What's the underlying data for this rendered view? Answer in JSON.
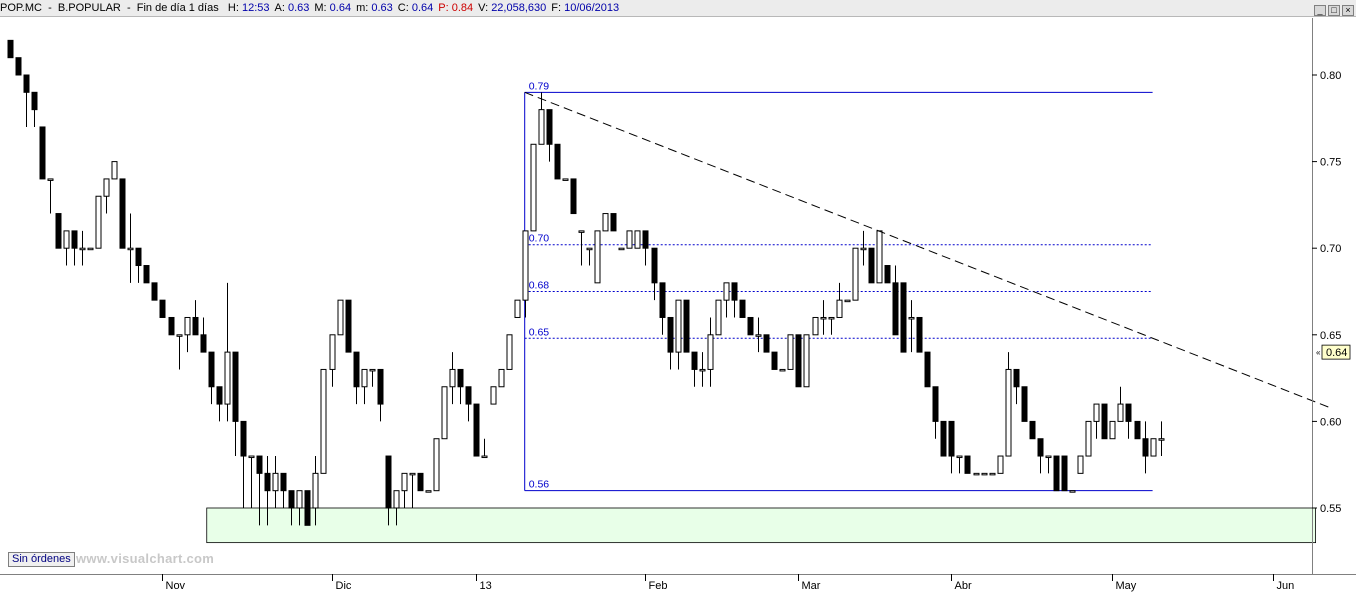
{
  "header": {
    "ticker": "POP.MC",
    "name": "B.POPULAR",
    "period": "Fin de día 1 días",
    "fields": [
      {
        "label": "H:",
        "value": "12:53"
      },
      {
        "label": "A:",
        "value": "0.63"
      },
      {
        "label": "M:",
        "value": "0.64"
      },
      {
        "label": "m:",
        "value": "0.63"
      },
      {
        "label": "C:",
        "value": "0.64"
      },
      {
        "label": "P:",
        "value": "0.84",
        "color": "#cc0000"
      },
      {
        "label": "V:",
        "value": "22,058,630"
      },
      {
        "label": "F:",
        "value": "10/06/2013"
      }
    ]
  },
  "window_buttons": {
    "minimize": "_",
    "maximize": "□",
    "close": "×"
  },
  "footer": {
    "orders_button": "Sin órdenes",
    "watermark": "www.visualchart.com"
  },
  "colors": {
    "up_body": "#ffffff",
    "down_body": "#000000",
    "fib_lines": "#0000cc",
    "support_zone": "#e8ffe8",
    "trendline": "#000000",
    "last_price_bg": "#ffffcc"
  },
  "chart_data": {
    "type": "candlestick",
    "ylim": [
      0.52,
      0.83
    ],
    "y_ticks": [
      {
        "value": 0.55,
        "label": "0.55"
      },
      {
        "value": 0.6,
        "label": "0.60"
      },
      {
        "value": 0.65,
        "label": "0.65"
      },
      {
        "value": 0.7,
        "label": "0.70"
      },
      {
        "value": 0.75,
        "label": "0.75"
      },
      {
        "value": 0.8,
        "label": "0.80"
      }
    ],
    "x_labels": [
      {
        "bar": 19,
        "label": "Nov"
      },
      {
        "bar": 40,
        "label": "Dic"
      },
      {
        "bar": 58,
        "label": "13"
      },
      {
        "bar": 79,
        "label": "Feb"
      },
      {
        "bar": 98,
        "label": "Mar"
      },
      {
        "bar": 117,
        "label": "Abr"
      },
      {
        "bar": 137,
        "label": "May"
      },
      {
        "bar": 157,
        "label": "Jun"
      }
    ],
    "last_price": "0.64",
    "fibonacci": {
      "start_bar": 64,
      "end_bar": 142,
      "levels": [
        {
          "value": 0.79,
          "label": "0.79",
          "style": "solid"
        },
        {
          "value": 0.702,
          "label": "0.70",
          "style": "dotted"
        },
        {
          "value": 0.675,
          "label": "0.68",
          "style": "dotted"
        },
        {
          "value": 0.648,
          "label": "0.65",
          "style": "dotted"
        },
        {
          "value": 0.56,
          "label": "0.56",
          "style": "solid"
        }
      ]
    },
    "trendline": {
      "bar1": 64,
      "price1": 0.79,
      "bar2": 164,
      "price2": 0.608
    },
    "support_zone": {
      "bar_start": 25,
      "bar_end": 162,
      "top": 0.55,
      "bottom": 0.53
    },
    "candles": [
      [
        0.82,
        0.82,
        0.81,
        0.81
      ],
      [
        0.81,
        0.81,
        0.8,
        0.8
      ],
      [
        0.8,
        0.8,
        0.77,
        0.79
      ],
      [
        0.79,
        0.79,
        0.77,
        0.78
      ],
      [
        0.77,
        0.77,
        0.74,
        0.74
      ],
      [
        0.74,
        0.74,
        0.72,
        0.74
      ],
      [
        0.72,
        0.72,
        0.7,
        0.7
      ],
      [
        0.7,
        0.71,
        0.69,
        0.71
      ],
      [
        0.71,
        0.71,
        0.69,
        0.7
      ],
      [
        0.7,
        0.71,
        0.69,
        0.7
      ],
      [
        0.7,
        0.7,
        0.7,
        0.7
      ],
      [
        0.7,
        0.73,
        0.7,
        0.73
      ],
      [
        0.73,
        0.74,
        0.72,
        0.74
      ],
      [
        0.74,
        0.75,
        0.74,
        0.75
      ],
      [
        0.74,
        0.74,
        0.7,
        0.7
      ],
      [
        0.7,
        0.72,
        0.68,
        0.7
      ],
      [
        0.7,
        0.7,
        0.68,
        0.69
      ],
      [
        0.69,
        0.69,
        0.68,
        0.68
      ],
      [
        0.68,
        0.68,
        0.67,
        0.67
      ],
      [
        0.67,
        0.67,
        0.66,
        0.66
      ],
      [
        0.66,
        0.66,
        0.65,
        0.65
      ],
      [
        0.65,
        0.65,
        0.63,
        0.65
      ],
      [
        0.65,
        0.66,
        0.64,
        0.66
      ],
      [
        0.66,
        0.67,
        0.65,
        0.65
      ],
      [
        0.65,
        0.66,
        0.64,
        0.64
      ],
      [
        0.64,
        0.64,
        0.61,
        0.62
      ],
      [
        0.62,
        0.62,
        0.6,
        0.61
      ],
      [
        0.61,
        0.68,
        0.6,
        0.64
      ],
      [
        0.64,
        0.64,
        0.58,
        0.6
      ],
      [
        0.6,
        0.6,
        0.55,
        0.58
      ],
      [
        0.58,
        0.58,
        0.55,
        0.58
      ],
      [
        0.58,
        0.58,
        0.54,
        0.57
      ],
      [
        0.57,
        0.58,
        0.54,
        0.56
      ],
      [
        0.56,
        0.58,
        0.55,
        0.57
      ],
      [
        0.57,
        0.57,
        0.55,
        0.56
      ],
      [
        0.56,
        0.56,
        0.54,
        0.55
      ],
      [
        0.55,
        0.56,
        0.54,
        0.56
      ],
      [
        0.56,
        0.56,
        0.54,
        0.54
      ],
      [
        0.55,
        0.58,
        0.54,
        0.57
      ],
      [
        0.57,
        0.63,
        0.57,
        0.63
      ],
      [
        0.63,
        0.65,
        0.62,
        0.65
      ],
      [
        0.65,
        0.67,
        0.65,
        0.67
      ],
      [
        0.67,
        0.67,
        0.64,
        0.64
      ],
      [
        0.64,
        0.64,
        0.61,
        0.62
      ],
      [
        0.62,
        0.63,
        0.61,
        0.63
      ],
      [
        0.63,
        0.63,
        0.62,
        0.63
      ],
      [
        0.63,
        0.63,
        0.6,
        0.61
      ],
      [
        0.58,
        0.58,
        0.54,
        0.55
      ],
      [
        0.55,
        0.56,
        0.54,
        0.56
      ],
      [
        0.56,
        0.57,
        0.55,
        0.57
      ],
      [
        0.57,
        0.57,
        0.55,
        0.57
      ],
      [
        0.57,
        0.57,
        0.56,
        0.56
      ],
      [
        0.56,
        0.56,
        0.56,
        0.56
      ],
      [
        0.56,
        0.59,
        0.56,
        0.59
      ],
      [
        0.59,
        0.62,
        0.59,
        0.62
      ],
      [
        0.62,
        0.64,
        0.61,
        0.63
      ],
      [
        0.63,
        0.63,
        0.61,
        0.62
      ],
      [
        0.62,
        0.62,
        0.6,
        0.61
      ],
      [
        0.61,
        0.61,
        0.58,
        0.58
      ],
      [
        0.58,
        0.59,
        0.58,
        0.58
      ],
      [
        0.61,
        0.62,
        0.61,
        0.62
      ],
      [
        0.62,
        0.63,
        0.62,
        0.63
      ],
      [
        0.63,
        0.65,
        0.63,
        0.65
      ],
      [
        0.66,
        0.67,
        0.66,
        0.67
      ],
      [
        0.67,
        0.71,
        0.66,
        0.71
      ],
      [
        0.71,
        0.76,
        0.71,
        0.76
      ],
      [
        0.76,
        0.79,
        0.76,
        0.78
      ],
      [
        0.78,
        0.78,
        0.75,
        0.76
      ],
      [
        0.76,
        0.76,
        0.74,
        0.74
      ],
      [
        0.74,
        0.74,
        0.74,
        0.74
      ],
      [
        0.74,
        0.74,
        0.72,
        0.72
      ],
      [
        0.71,
        0.71,
        0.69,
        0.71
      ],
      [
        0.7,
        0.7,
        0.69,
        0.7
      ],
      [
        0.68,
        0.71,
        0.68,
        0.71
      ],
      [
        0.71,
        0.72,
        0.71,
        0.72
      ],
      [
        0.72,
        0.72,
        0.71,
        0.71
      ],
      [
        0.7,
        0.7,
        0.7,
        0.7
      ],
      [
        0.7,
        0.71,
        0.7,
        0.71
      ],
      [
        0.7,
        0.71,
        0.7,
        0.71
      ],
      [
        0.71,
        0.71,
        0.69,
        0.7
      ],
      [
        0.7,
        0.7,
        0.67,
        0.68
      ],
      [
        0.68,
        0.68,
        0.65,
        0.66
      ],
      [
        0.66,
        0.66,
        0.63,
        0.64
      ],
      [
        0.64,
        0.67,
        0.63,
        0.67
      ],
      [
        0.67,
        0.67,
        0.64,
        0.64
      ],
      [
        0.64,
        0.64,
        0.62,
        0.63
      ],
      [
        0.63,
        0.64,
        0.62,
        0.63
      ],
      [
        0.63,
        0.66,
        0.62,
        0.65
      ],
      [
        0.65,
        0.67,
        0.65,
        0.67
      ],
      [
        0.67,
        0.68,
        0.66,
        0.68
      ],
      [
        0.68,
        0.68,
        0.66,
        0.67
      ],
      [
        0.67,
        0.67,
        0.66,
        0.66
      ],
      [
        0.66,
        0.66,
        0.65,
        0.65
      ],
      [
        0.65,
        0.66,
        0.64,
        0.65
      ],
      [
        0.65,
        0.65,
        0.64,
        0.64
      ],
      [
        0.64,
        0.64,
        0.63,
        0.63
      ],
      [
        0.63,
        0.63,
        0.63,
        0.63
      ],
      [
        0.63,
        0.65,
        0.63,
        0.65
      ],
      [
        0.65,
        0.65,
        0.62,
        0.62
      ],
      [
        0.62,
        0.65,
        0.62,
        0.65
      ],
      [
        0.65,
        0.66,
        0.65,
        0.66
      ],
      [
        0.66,
        0.67,
        0.65,
        0.66
      ],
      [
        0.66,
        0.66,
        0.65,
        0.66
      ],
      [
        0.66,
        0.68,
        0.66,
        0.67
      ],
      [
        0.67,
        0.67,
        0.67,
        0.67
      ],
      [
        0.67,
        0.7,
        0.67,
        0.7
      ],
      [
        0.7,
        0.71,
        0.69,
        0.7
      ],
      [
        0.7,
        0.7,
        0.68,
        0.68
      ],
      [
        0.68,
        0.71,
        0.68,
        0.71
      ],
      [
        0.69,
        0.69,
        0.68,
        0.68
      ],
      [
        0.68,
        0.69,
        0.65,
        0.65
      ],
      [
        0.68,
        0.68,
        0.64,
        0.64
      ],
      [
        0.66,
        0.67,
        0.64,
        0.66
      ],
      [
        0.66,
        0.66,
        0.64,
        0.64
      ],
      [
        0.64,
        0.64,
        0.62,
        0.62
      ],
      [
        0.62,
        0.62,
        0.59,
        0.6
      ],
      [
        0.6,
        0.6,
        0.58,
        0.58
      ],
      [
        0.6,
        0.6,
        0.57,
        0.58
      ],
      [
        0.58,
        0.58,
        0.57,
        0.58
      ],
      [
        0.58,
        0.58,
        0.57,
        0.57
      ],
      [
        0.57,
        0.57,
        0.57,
        0.57
      ],
      [
        0.57,
        0.57,
        0.57,
        0.57
      ],
      [
        0.57,
        0.57,
        0.57,
        0.57
      ],
      [
        0.57,
        0.58,
        0.57,
        0.58
      ],
      [
        0.58,
        0.64,
        0.58,
        0.63
      ],
      [
        0.63,
        0.63,
        0.61,
        0.62
      ],
      [
        0.62,
        0.62,
        0.6,
        0.6
      ],
      [
        0.6,
        0.6,
        0.59,
        0.59
      ],
      [
        0.59,
        0.59,
        0.57,
        0.58
      ],
      [
        0.58,
        0.58,
        0.57,
        0.58
      ],
      [
        0.58,
        0.58,
        0.56,
        0.56
      ],
      [
        0.58,
        0.58,
        0.56,
        0.56
      ],
      [
        0.56,
        0.56,
        0.56,
        0.56
      ],
      [
        0.57,
        0.58,
        0.57,
        0.58
      ],
      [
        0.58,
        0.6,
        0.58,
        0.6
      ],
      [
        0.6,
        0.61,
        0.59,
        0.61
      ],
      [
        0.61,
        0.61,
        0.59,
        0.59
      ],
      [
        0.59,
        0.6,
        0.59,
        0.6
      ],
      [
        0.6,
        0.62,
        0.6,
        0.61
      ],
      [
        0.61,
        0.61,
        0.59,
        0.6
      ],
      [
        0.6,
        0.6,
        0.59,
        0.59
      ],
      [
        0.59,
        0.6,
        0.57,
        0.58
      ],
      [
        0.58,
        0.59,
        0.58,
        0.59
      ],
      [
        0.59,
        0.6,
        0.58,
        0.59
      ]
    ]
  }
}
